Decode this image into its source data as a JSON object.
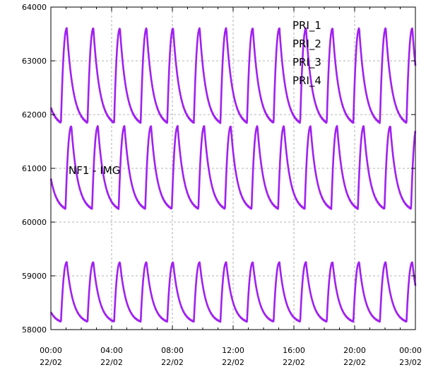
{
  "chart_data": {
    "type": "line",
    "title": "",
    "xlabel": "",
    "ylabel": "",
    "ylim": [
      58000,
      64000
    ],
    "y_ticks": [
      "64000",
      "63000",
      "62000",
      "61000",
      "60000",
      "59000",
      "58000"
    ],
    "x_ticks": [
      {
        "time": "00:00",
        "date": "22/02"
      },
      {
        "time": "04:00",
        "date": "22/02"
      },
      {
        "time": "08:00",
        "date": "22/02"
      },
      {
        "time": "12:00",
        "date": "22/02"
      },
      {
        "time": "16:00",
        "date": "22/02"
      },
      {
        "time": "20:00",
        "date": "22/02"
      },
      {
        "time": "00:00",
        "date": "23/02"
      }
    ],
    "x_range_hours": [
      0,
      24
    ],
    "grid": true,
    "legend_position": "top-right",
    "legend_entries": [
      "PRI_1",
      "PRI_2",
      "PRI_3",
      "PRI_4"
    ],
    "annotation": "NF1 - IMG",
    "series_color": "#a020f0",
    "cycle_period_hours": 1.75,
    "series": [
      {
        "name": "PRI_1",
        "min": 61850,
        "max": 63600,
        "phase_hours": 1.05
      },
      {
        "name": "PRI_2",
        "min": 60250,
        "max": 61780,
        "phase_hours": 1.35
      },
      {
        "name": "PRI_3",
        "min": 58150,
        "max": 59250,
        "phase_hours": 1.05
      }
    ]
  }
}
